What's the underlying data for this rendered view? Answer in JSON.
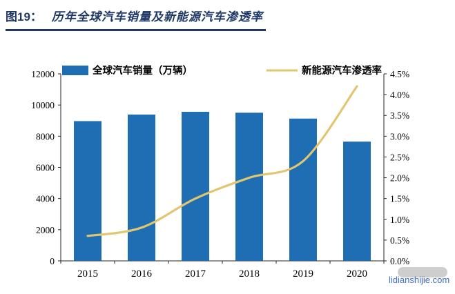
{
  "header": {
    "figure_label": "图19：",
    "title": "历年全球汽车销量及新能源汽车渗透率"
  },
  "watermark": "lidianshijie.com",
  "colors": {
    "bar": "#1F6DB3",
    "line": "#E0C66F",
    "title_accent": "#1F3864",
    "axis": "#262626",
    "watermark_text": "#3E6CC8"
  },
  "chart_data": {
    "type": "bar+line",
    "title": "历年全球汽车销量及新能源汽车渗透率",
    "categories": [
      "2015",
      "2016",
      "2017",
      "2018",
      "2019",
      "2020"
    ],
    "series": [
      {
        "name": "全球汽车销量（万辆）",
        "type": "bar",
        "axis": "left",
        "color": "#1F6DB3",
        "values": [
          8968,
          9386,
          9566,
          9506,
          9130,
          7650
        ]
      },
      {
        "name": "新能源汽车渗透率",
        "type": "line",
        "axis": "right",
        "color": "#E0C66F",
        "values": [
          0.6,
          0.8,
          1.5,
          2.0,
          2.4,
          4.2
        ]
      }
    ],
    "left_axis": {
      "min": 0,
      "max": 12000,
      "step": 2000
    },
    "right_axis": {
      "min": 0,
      "max": 4.5,
      "step": 0.5,
      "format": "percent_1dp"
    },
    "legend_position": "top",
    "grid": false
  }
}
